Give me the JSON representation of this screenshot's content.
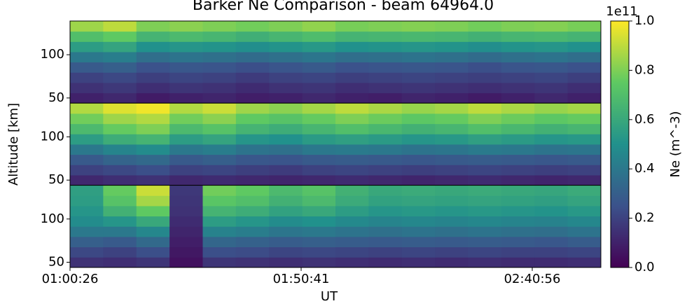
{
  "chart_data": {
    "type": "heatmap",
    "title": "Barker Ne Comparison - beam 64964.0",
    "xlabel": "UT",
    "ylabel": "Altitude [km]",
    "xlim": [
      3626,
      10551
    ],
    "xticks": [
      {
        "value": 3626,
        "label": "01:00:26"
      },
      {
        "value": 6641,
        "label": "01:50:41"
      },
      {
        "value": 9656,
        "label": "02:40:56"
      }
    ],
    "ylim": [
      44,
      139
    ],
    "yticks": [
      50,
      100
    ],
    "colorbar": {
      "label": "Ne (m^-3)",
      "offset_label": "1e11",
      "clim": [
        0,
        1
      ],
      "ticks": [
        {
          "value": 0,
          "label": "0.0"
        },
        {
          "value": 0.2,
          "label": "0.2"
        },
        {
          "value": 0.4,
          "label": "0.4"
        },
        {
          "value": 0.6,
          "label": "0.6"
        },
        {
          "value": 0.8,
          "label": "0.8"
        },
        {
          "value": 1,
          "label": "1.0"
        }
      ]
    },
    "panels": [
      {
        "values": [
          [
            0.1,
            0.12,
            0.08,
            0.1,
            0.11,
            0.09,
            0.1,
            0.12,
            0.1,
            0.09,
            0.11,
            0.1,
            0.08,
            0.1,
            0.12,
            0.1
          ],
          [
            0.15,
            0.17,
            0.14,
            0.16,
            0.15,
            0.13,
            0.15,
            0.16,
            0.14,
            0.15,
            0.16,
            0.15,
            0.14,
            0.15,
            0.16,
            0.14
          ],
          [
            0.2,
            0.22,
            0.19,
            0.21,
            0.2,
            0.18,
            0.2,
            0.21,
            0.19,
            0.2,
            0.21,
            0.2,
            0.19,
            0.2,
            0.21,
            0.19
          ],
          [
            0.28,
            0.3,
            0.25,
            0.27,
            0.26,
            0.24,
            0.26,
            0.28,
            0.25,
            0.26,
            0.27,
            0.26,
            0.24,
            0.26,
            0.27,
            0.25
          ],
          [
            0.4,
            0.42,
            0.36,
            0.38,
            0.37,
            0.35,
            0.37,
            0.39,
            0.36,
            0.37,
            0.38,
            0.37,
            0.35,
            0.37,
            0.38,
            0.36
          ],
          [
            0.55,
            0.58,
            0.5,
            0.52,
            0.51,
            0.49,
            0.51,
            0.53,
            0.5,
            0.51,
            0.52,
            0.51,
            0.49,
            0.51,
            0.52,
            0.5
          ],
          [
            0.7,
            0.75,
            0.65,
            0.68,
            0.66,
            0.63,
            0.66,
            0.69,
            0.65,
            0.66,
            0.67,
            0.66,
            0.64,
            0.66,
            0.67,
            0.65
          ],
          [
            0.85,
            0.9,
            0.8,
            0.82,
            0.8,
            0.78,
            0.8,
            0.83,
            0.79,
            0.8,
            0.81,
            0.8,
            0.78,
            0.8,
            0.81,
            0.79
          ]
        ]
      },
      {
        "values": [
          [
            0.12,
            0.14,
            0.15,
            0.12,
            0.13,
            0.12,
            0.11,
            0.12,
            0.13,
            0.12,
            0.11,
            0.12,
            0.13,
            0.12,
            0.11,
            0.12
          ],
          [
            0.2,
            0.22,
            0.24,
            0.2,
            0.21,
            0.19,
            0.18,
            0.2,
            0.21,
            0.2,
            0.19,
            0.2,
            0.21,
            0.2,
            0.19,
            0.2
          ],
          [
            0.28,
            0.32,
            0.34,
            0.28,
            0.3,
            0.27,
            0.26,
            0.28,
            0.29,
            0.28,
            0.27,
            0.28,
            0.29,
            0.28,
            0.27,
            0.28
          ],
          [
            0.4,
            0.45,
            0.48,
            0.4,
            0.42,
            0.38,
            0.37,
            0.4,
            0.41,
            0.4,
            0.38,
            0.39,
            0.41,
            0.4,
            0.38,
            0.39
          ],
          [
            0.55,
            0.62,
            0.65,
            0.55,
            0.58,
            0.52,
            0.5,
            0.54,
            0.56,
            0.54,
            0.52,
            0.53,
            0.56,
            0.54,
            0.52,
            0.53
          ],
          [
            0.68,
            0.76,
            0.8,
            0.68,
            0.72,
            0.65,
            0.62,
            0.66,
            0.7,
            0.67,
            0.64,
            0.66,
            0.7,
            0.67,
            0.64,
            0.66
          ],
          [
            0.78,
            0.85,
            0.88,
            0.78,
            0.82,
            0.75,
            0.72,
            0.76,
            0.8,
            0.77,
            0.74,
            0.76,
            0.8,
            0.77,
            0.74,
            0.76
          ],
          [
            0.88,
            0.95,
            0.98,
            0.88,
            0.92,
            0.85,
            0.82,
            0.86,
            0.9,
            0.87,
            0.84,
            0.86,
            0.9,
            0.87,
            0.84,
            0.86
          ]
        ]
      },
      {
        "values": [
          [
            0.15,
            0.14,
            0.16,
            0.05,
            0.16,
            0.15,
            0.14,
            0.15,
            0.14,
            0.13,
            0.14,
            0.13,
            0.14,
            0.13,
            0.13,
            0.14
          ],
          [
            0.22,
            0.2,
            0.24,
            0.07,
            0.24,
            0.23,
            0.21,
            0.22,
            0.21,
            0.2,
            0.21,
            0.2,
            0.21,
            0.2,
            0.2,
            0.21
          ],
          [
            0.3,
            0.28,
            0.34,
            0.09,
            0.33,
            0.31,
            0.29,
            0.3,
            0.29,
            0.28,
            0.29,
            0.28,
            0.29,
            0.28,
            0.27,
            0.29
          ],
          [
            0.4,
            0.4,
            0.46,
            0.11,
            0.44,
            0.42,
            0.39,
            0.4,
            0.38,
            0.37,
            0.38,
            0.37,
            0.38,
            0.37,
            0.36,
            0.38
          ],
          [
            0.48,
            0.52,
            0.6,
            0.13,
            0.55,
            0.52,
            0.48,
            0.5,
            0.47,
            0.45,
            0.46,
            0.45,
            0.46,
            0.45,
            0.44,
            0.46
          ],
          [
            0.52,
            0.64,
            0.75,
            0.15,
            0.65,
            0.62,
            0.57,
            0.6,
            0.55,
            0.52,
            0.53,
            0.52,
            0.53,
            0.52,
            0.51,
            0.53
          ],
          [
            0.55,
            0.72,
            0.86,
            0.16,
            0.73,
            0.7,
            0.64,
            0.68,
            0.61,
            0.57,
            0.58,
            0.57,
            0.58,
            0.57,
            0.56,
            0.58
          ],
          [
            0.56,
            0.76,
            0.92,
            0.17,
            0.78,
            0.75,
            0.68,
            0.72,
            0.64,
            0.6,
            0.61,
            0.6,
            0.61,
            0.6,
            0.59,
            0.61
          ]
        ]
      }
    ]
  }
}
